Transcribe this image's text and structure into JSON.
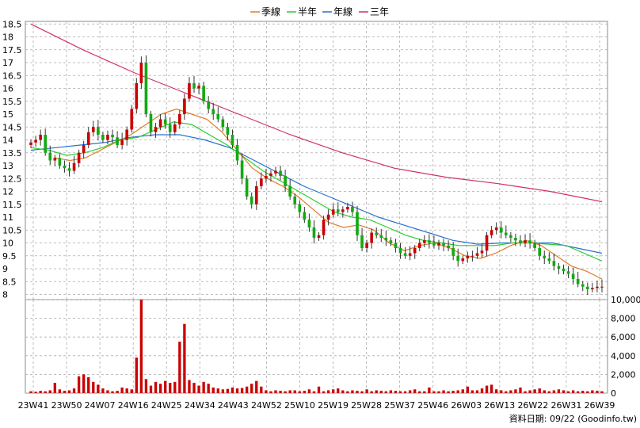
{
  "chart_data": [
    {
      "type": "candlestick",
      "y_ticks": [
        "18.5",
        "18",
        "17.5",
        "17",
        "16.5",
        "16",
        "15.5",
        "15",
        "14.5",
        "14",
        "13.5",
        "13",
        "12.5",
        "12",
        "11.5",
        "11",
        "10.5",
        "10",
        "9.5",
        "9",
        "8.5",
        "8"
      ],
      "ylim": [
        7.8,
        18.6
      ],
      "x_ticks": [
        "23W41",
        "23W50",
        "24W07",
        "24W16",
        "24W25",
        "24W34",
        "24W43",
        "24W52",
        "25W10",
        "25W19",
        "25W28",
        "25W37",
        "25W46",
        "26W03",
        "26W13",
        "26W22",
        "26W31",
        "26W39"
      ],
      "grid": true,
      "legend": {
        "placement": "top-center",
        "entries": [
          {
            "label": "季線",
            "color": "#e07b2a"
          },
          {
            "label": "半年",
            "color": "#2ecc2e"
          },
          {
            "label": "年線",
            "color": "#2a6fd0"
          },
          {
            "label": "三年",
            "color": "#d0306a"
          }
        ]
      },
      "colors": {
        "up": "#cc0000",
        "down": "#11aa11",
        "wick": "#333333"
      },
      "close": [
        13.9,
        14.0,
        14.2,
        13.5,
        13.2,
        13.3,
        13.0,
        12.9,
        12.8,
        13.1,
        13.5,
        13.8,
        14.3,
        14.5,
        14.2,
        14.0,
        14.2,
        14.1,
        13.8,
        14.0,
        14.4,
        15.2,
        16.2,
        17.0,
        15.0,
        14.3,
        14.5,
        14.8,
        14.6,
        14.3,
        14.6,
        15.0,
        15.6,
        16.2,
        16.0,
        16.1,
        15.5,
        15.2,
        15.0,
        14.8,
        14.5,
        14.2,
        13.8,
        13.2,
        12.5,
        11.8,
        11.5,
        12.2,
        12.5,
        12.6,
        12.7,
        12.8,
        12.6,
        12.2,
        11.8,
        11.5,
        11.2,
        10.9,
        10.6,
        10.2,
        10.3,
        10.9,
        11.1,
        11.3,
        11.2,
        11.3,
        11.4,
        11.2,
        10.3,
        9.8,
        10.0,
        10.4,
        10.3,
        10.2,
        10.1,
        10.0,
        9.8,
        9.6,
        9.5,
        9.6,
        9.8,
        10.0,
        10.1,
        10.0,
        9.9,
        10.0,
        9.9,
        9.8,
        9.5,
        9.3,
        9.4,
        9.5,
        9.5,
        9.6,
        9.7,
        10.3,
        10.5,
        10.6,
        10.4,
        10.3,
        10.2,
        10.1,
        10.0,
        10.1,
        10.0,
        9.8,
        9.5,
        9.4,
        9.3,
        9.1,
        9.0,
        8.9,
        8.8,
        8.6,
        8.4,
        8.3,
        8.2,
        8.25,
        8.3,
        8.3
      ],
      "ma_quarter": {
        "x_start": 5,
        "values": [
          13.3,
          13.2,
          13.3,
          13.6,
          13.9,
          14.2,
          14.6,
          15.0,
          15.2,
          15.0,
          14.8,
          14.3,
          13.6,
          12.9,
          12.5,
          12.2,
          11.8,
          11.3,
          10.8,
          10.6,
          10.7,
          10.5,
          10.0,
          9.7,
          9.9,
          10.0,
          9.8,
          9.5,
          9.4,
          9.6,
          9.9,
          10.1,
          9.9,
          9.5,
          9.1,
          8.9,
          8.6
        ]
      },
      "ma_half": {
        "x_start": 0,
        "values": [
          13.7,
          13.6,
          13.4,
          13.5,
          13.7,
          14.0,
          14.1,
          14.4,
          14.7,
          14.6,
          14.2,
          13.8,
          13.3,
          12.8,
          12.4,
          12.0,
          11.6,
          11.2,
          11.0,
          10.9,
          10.6,
          10.3,
          10.1,
          10.0,
          9.9,
          9.9,
          9.9,
          10.0,
          10.0,
          9.95,
          9.9,
          9.6,
          9.3
        ]
      },
      "ma_year": {
        "x_start": 0,
        "values": [
          13.6,
          13.7,
          13.8,
          13.9,
          14.1,
          14.2,
          14.2,
          14.0,
          13.7,
          13.2,
          12.7,
          12.2,
          11.8,
          11.4,
          11.0,
          10.7,
          10.4,
          10.1,
          9.95,
          10.0,
          10.0,
          10.0,
          9.8,
          9.6
        ]
      },
      "ma_3year": {
        "x_start": 0,
        "values": [
          18.5,
          17.5,
          16.6,
          15.8,
          15.0,
          14.2,
          13.5,
          12.9,
          12.55,
          12.3,
          12.0,
          11.6
        ]
      }
    },
    {
      "type": "bar",
      "y_ticks": [
        "10,000",
        "8,000",
        "6,000",
        "4,000",
        "2,000",
        "0"
      ],
      "ylim": [
        0,
        10000
      ],
      "color": "#cc0000",
      "values": [
        200,
        150,
        250,
        200,
        300,
        1100,
        400,
        250,
        300,
        500,
        1800,
        2000,
        1700,
        1200,
        900,
        500,
        300,
        200,
        250,
        600,
        500,
        400,
        3800,
        10000,
        1500,
        800,
        1200,
        1000,
        1300,
        1100,
        1200,
        5500,
        7400,
        1400,
        1100,
        800,
        1200,
        1000,
        600,
        500,
        400,
        450,
        600,
        500,
        550,
        700,
        1000,
        1300,
        700,
        300,
        200,
        300,
        250,
        200,
        300,
        300,
        200,
        250,
        400,
        200,
        700,
        200,
        300,
        400,
        500,
        300,
        200,
        300,
        250,
        200,
        400,
        200,
        300,
        250,
        200,
        300,
        250,
        200,
        200,
        300,
        400,
        200,
        200,
        600,
        200,
        200,
        300,
        200,
        250,
        300,
        400,
        700,
        300,
        300,
        500,
        800,
        900,
        400,
        300,
        200,
        300,
        400,
        600,
        200,
        300,
        400,
        500,
        300,
        200,
        300,
        400,
        300,
        200,
        300,
        200,
        250,
        200,
        300,
        250,
        200
      ]
    }
  ],
  "footer": {
    "text": "資料日期: 09/22  (Goodinfo.tw)"
  }
}
